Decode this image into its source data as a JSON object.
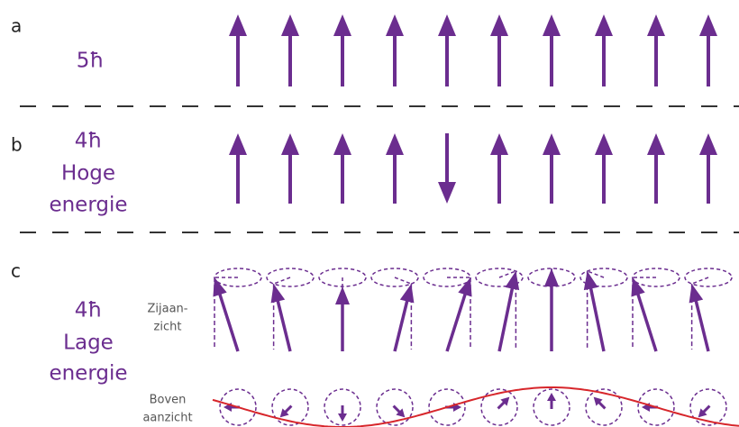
{
  "panels": [
    {
      "label": "a",
      "energy": "5ħ"
    },
    {
      "label": "b",
      "energy": "4ħ",
      "description": [
        "Hoge",
        "energie"
      ]
    },
    {
      "label": "c",
      "energy": "4ħ",
      "description": [
        "Lage",
        "energie"
      ],
      "views": [
        [
          "Zijaan-",
          "zicht"
        ],
        [
          "Boven",
          "aanzicht"
        ]
      ]
    }
  ]
}
